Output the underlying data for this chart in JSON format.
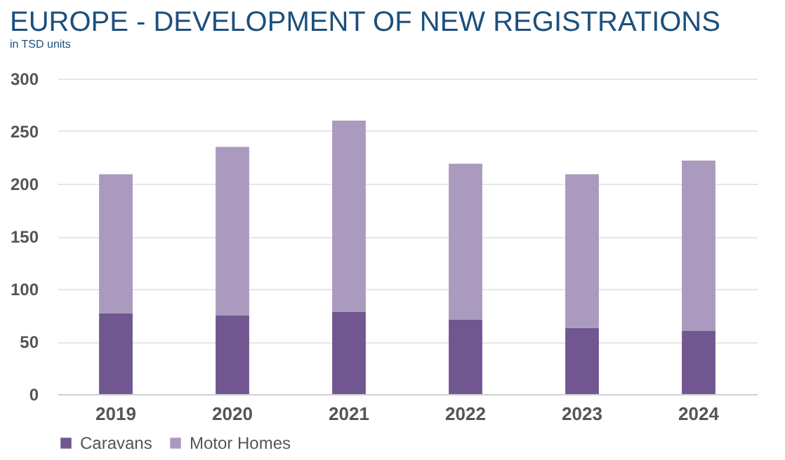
{
  "chart_data": {
    "type": "bar",
    "title": "EUROPE - DEVELOPMENT OF NEW REGISTRATIONS",
    "subtitle": "in TSD units",
    "categories": [
      "2019",
      "2020",
      "2021",
      "2022",
      "2023",
      "2024"
    ],
    "stacked": true,
    "series": [
      {
        "name": "Caravans",
        "color": "#70578f",
        "values": [
          77,
          75,
          78,
          71,
          63,
          60
        ]
      },
      {
        "name": "Motor Homes",
        "color": "#a99abe",
        "values": [
          132,
          160,
          182,
          148,
          146,
          162
        ]
      }
    ],
    "ylim": [
      0,
      300
    ],
    "yticks": [
      0,
      50,
      100,
      150,
      200,
      250,
      300
    ],
    "grid": "y",
    "legend": "bottom"
  }
}
